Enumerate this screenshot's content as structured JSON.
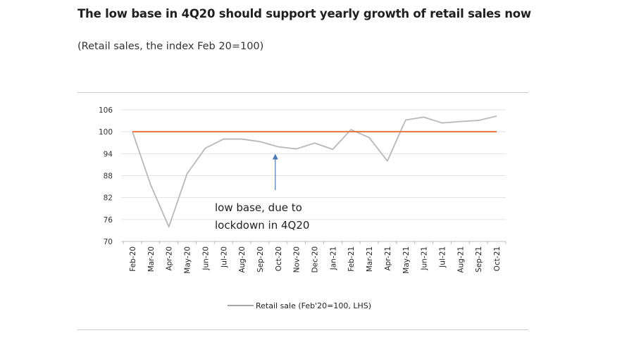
{
  "chart_data": {
    "type": "line",
    "title": "The low base in 4Q20 should support yearly growth of retail sales now",
    "subtitle": "(Retail sales, the index Feb 20=100)",
    "categories": [
      "Feb-20",
      "Mar-20",
      "Apr-20",
      "May-20",
      "Jun-20",
      "Jul-20",
      "Aug-20",
      "Sep-20",
      "Oct-20",
      "Nov-20",
      "Dec-20",
      "Jan-21",
      "Feb-21",
      "Mar-21",
      "Apr-21",
      "May-21",
      "Jun-21",
      "Jul-21",
      "Aug-21",
      "Sep-21",
      "Oct-21"
    ],
    "series": [
      {
        "name": "Retail sale (Feb'20=100, LHS)",
        "color": "#b8b8b8",
        "values": [
          100,
          85.5,
          74,
          88.5,
          95.5,
          98,
          98,
          97.3,
          95.9,
          95.3,
          96.9,
          95.2,
          100.6,
          98.4,
          92,
          103.2,
          104,
          102.4,
          102.8,
          103.1,
          104.3
        ]
      },
      {
        "name": "",
        "color": "#e8743b",
        "values": [
          100,
          100,
          100,
          100,
          100,
          100,
          100,
          100,
          100,
          100,
          100,
          100,
          100,
          100,
          100,
          100,
          100,
          100,
          100,
          100,
          100
        ]
      }
    ],
    "yticks": [
      70,
      76,
      82,
      88,
      94,
      100,
      106
    ],
    "ylim": [
      70,
      106
    ],
    "grid": true,
    "legend_position": "bottom",
    "annotation": {
      "lines": [
        "low base, due to",
        "lockdown in 4Q20"
      ],
      "arrow_target": "Oct-20",
      "arrow_color": "#4a7ab5"
    }
  }
}
